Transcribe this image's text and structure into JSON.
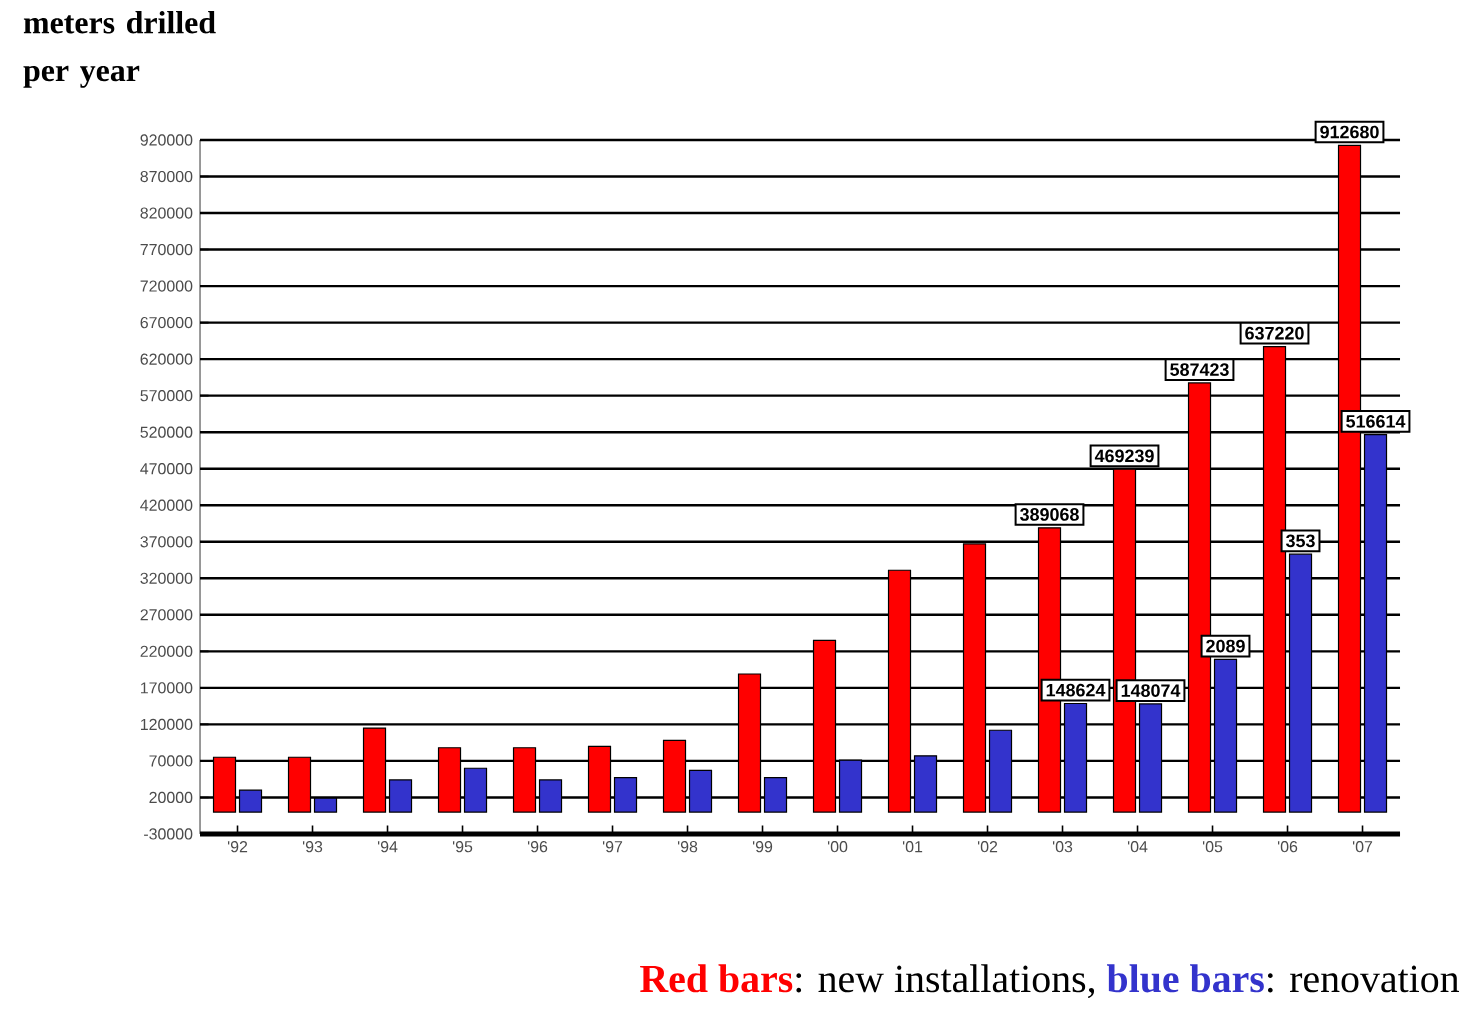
{
  "chart_data": {
    "type": "bar",
    "ylabel": "meters drilled per year",
    "categories": [
      "'92",
      "'93",
      "'94",
      "'95",
      "'96",
      "'97",
      "'98",
      "'99",
      "'00",
      "'01",
      "'02",
      "'03",
      "'04",
      "'05",
      "'06",
      "'07"
    ],
    "series": [
      {
        "color": "#ff0000",
        "values": [
          75000,
          75000,
          115000,
          88000,
          88000,
          90000,
          98000,
          189000,
          235000,
          331000,
          367000,
          389068,
          469239,
          587423,
          637220,
          912680
        ],
        "value_labels": [
          null,
          null,
          null,
          null,
          null,
          null,
          null,
          null,
          null,
          null,
          null,
          "389068",
          "469239",
          "587423",
          "637220",
          "912680"
        ]
      },
      {
        "color": "#3333cc",
        "values": [
          30000,
          19000,
          44000,
          60000,
          44000,
          47000,
          57000,
          47000,
          71000,
          77000,
          112000,
          148624,
          148074,
          209000,
          353000,
          516614
        ],
        "value_labels": [
          null,
          null,
          null,
          null,
          null,
          null,
          null,
          null,
          null,
          null,
          null,
          "148624",
          "148074",
          null,
          null,
          "516614"
        ]
      }
    ],
    "ylim": [
      -30000,
      920000
    ],
    "yticks": [
      -30000,
      20000,
      70000,
      120000,
      170000,
      220000,
      270000,
      320000,
      370000,
      420000,
      470000,
      520000,
      570000,
      620000,
      670000,
      720000,
      770000,
      820000,
      870000,
      920000
    ],
    "grid": "y",
    "annotations": [
      "Red bars",
      ": new installations, ",
      "blue bars",
      ": renovation",
      {
        "text": "2089",
        "x": "'05",
        "y": 209000
      },
      {
        "text": "353",
        "x": "'06",
        "y": 353000
      }
    ]
  }
}
